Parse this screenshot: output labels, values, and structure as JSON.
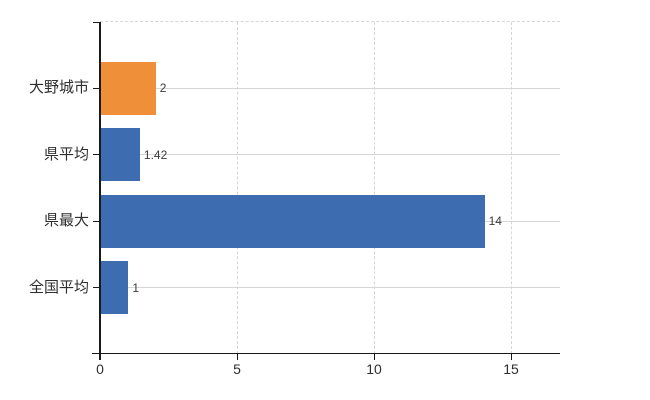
{
  "chart_data": {
    "type": "bar",
    "orientation": "horizontal",
    "title": "",
    "xlabel": "",
    "ylabel": "",
    "categories": [
      "大野城市",
      "県平均",
      "県最大",
      "全国平均"
    ],
    "values": [
      2,
      1.42,
      14,
      1
    ],
    "value_labels": [
      "2",
      "1.42",
      "14",
      "1"
    ],
    "bar_colors": [
      "#ef8f3a",
      "#3d6cb0",
      "#3d6cb0",
      "#3d6cb0"
    ],
    "xlim": [
      0,
      16.8
    ],
    "xticks": [
      0,
      5,
      10,
      15
    ],
    "xticklabels": [
      "0",
      "5",
      "10",
      "15"
    ],
    "legend": "none",
    "grid": {
      "vertical_gridlines": "dashed",
      "horizontal_category_lines": "solid",
      "top_border": "dashed"
    },
    "colors": {
      "bar_blue": "#3d6cb0",
      "bar_orange": "#ef8f3a",
      "gridline": "#d6d6d2",
      "axis": "#1a1a1a",
      "label_text": "#2e2e2e",
      "value_text": "#3c3c3c",
      "background": "#ffffff"
    }
  }
}
